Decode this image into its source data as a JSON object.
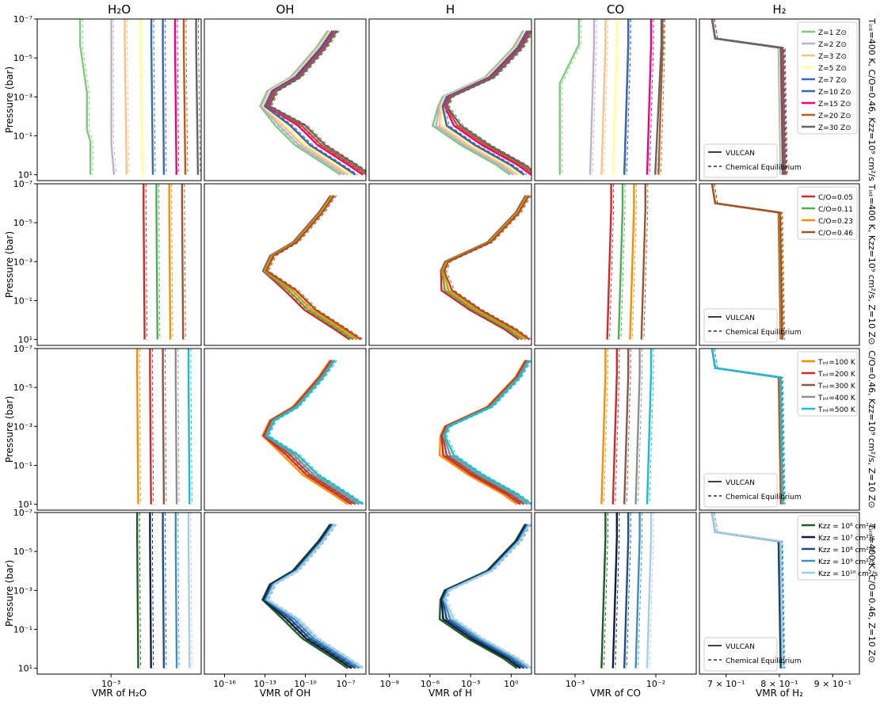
{
  "figure": {
    "column_titles": [
      "H₂O",
      "OH",
      "H",
      "CO",
      "H₂"
    ],
    "ylabel": "Pressure (bar)",
    "row_labels": [
      "Tᵢₙₜ=400 K, C/O=0.46, Kzz=10⁹ cm²/s",
      "Tᵢₙₜ=400 K, Kzz=10⁹ cm²/s, Z=10 Z⊙",
      "C/O=0.46, Kzz=10⁹ cm²/s, Z=10 Z⊙",
      "Tᵢₙₜ=400 K, C/O=0.46, Z=10 Z⊙"
    ],
    "y_tick_labels": [
      "10⁻⁷",
      "10⁻⁵",
      "10⁻³",
      "10⁻¹",
      "10¹"
    ],
    "x_axis": [
      {
        "xlabel": "VMR of H₂O",
        "ticks": [
          "10⁻³"
        ]
      },
      {
        "xlabel": "VMR of OH",
        "ticks": [
          "10⁻¹⁶",
          "10⁻¹³",
          "10⁻¹⁰",
          "10⁻⁷"
        ]
      },
      {
        "xlabel": "VMR of H",
        "ticks": [
          "10⁻⁹",
          "10⁻⁶",
          "10⁻³",
          "10⁰"
        ]
      },
      {
        "xlabel": "VMR of CO",
        "ticks": [
          "10⁻³",
          "10⁻²"
        ]
      },
      {
        "xlabel": "VMR of H₂",
        "ticks": [
          "7 × 10⁻¹",
          "8 × 10⁻¹",
          "9 × 10⁻¹"
        ]
      }
    ],
    "style_legend": {
      "solid": "VULCAN",
      "dashed": "Chemical Equilibrium"
    }
  },
  "chart_data": {
    "type": "line",
    "description_axes": {
      "y": "pressure (bar), log scale, inverted",
      "ylim": [
        10,
        1e-07
      ],
      "x": "volume mixing ratio, log scale"
    },
    "rows": [
      {
        "legend": {
          "location": "H₂ panel, upper right",
          "entries": [
            {
              "label": "Z=1 Z⊙",
              "color": "#7fc97f"
            },
            {
              "label": "Z=2 Z⊙",
              "color": "#beaed4"
            },
            {
              "label": "Z=3 Z⊙",
              "color": "#fdc086"
            },
            {
              "label": "Z=5 Z⊙",
              "color": "#ffff99"
            },
            {
              "label": "Z=7 Z⊙",
              "color": "#386cb0"
            },
            {
              "label": "Z=10 Z⊙",
              "color": "#3a66b3"
            },
            {
              "label": "Z=15 Z⊙",
              "color": "#f0027f"
            },
            {
              "label": "Z=20 Z⊙",
              "color": "#bf5b17"
            },
            {
              "label": "Z=30 Z⊙",
              "color": "#666666"
            }
          ]
        }
      },
      {
        "legend": {
          "location": "H₂ panel, upper right",
          "entries": [
            {
              "label": "C/O=0.05",
              "color": "#d62728"
            },
            {
              "label": "C/O=0.11",
              "color": "#4caf50"
            },
            {
              "label": "C/O=0.23",
              "color": "#ff8c00"
            },
            {
              "label": "C/O=0.46",
              "color": "#a0522d"
            }
          ]
        }
      },
      {
        "legend": {
          "location": "H₂ panel, upper right",
          "entries": [
            {
              "label": "Tᵢₙₜ=100 K",
              "color": "#ff8c00"
            },
            {
              "label": "Tᵢₙₜ=200 K",
              "color": "#d62728"
            },
            {
              "label": "Tᵢₙₜ=300 K",
              "color": "#8c564b"
            },
            {
              "label": "Tᵢₙₜ=400 K",
              "color": "#8f8f8f"
            },
            {
              "label": "Tᵢₙₜ=500 K",
              "color": "#17becf"
            }
          ]
        }
      },
      {
        "legend": {
          "location": "H₂ panel, upper right",
          "entries": [
            {
              "label": "Kzz = 10⁶ cm²/s",
              "color": "#1b5e20"
            },
            {
              "label": "Kzz = 10⁷ cm²/s",
              "color": "#0d1b4a"
            },
            {
              "label": "Kzz = 10⁸ cm²/s",
              "color": "#1f4e8c"
            },
            {
              "label": "Kzz = 10⁹ cm²/s",
              "color": "#3d8fc2"
            },
            {
              "label": "Kzz = 10¹⁰ cm²/s",
              "color": "#a6cee3"
            }
          ]
        }
      }
    ],
    "curves": {
      "H2O": {
        "Z=1 Z⊙": [
          [
            1e-07,
            0.0002
          ],
          [
            2e-06,
            0.0002
          ],
          [
            0.0006,
            0.00025
          ],
          [
            0.05,
            0.00025
          ],
          [
            0.2,
            0.00028
          ],
          [
            10,
            0.00028
          ]
        ],
        "Z=2 Z⊙": [
          [
            1e-07,
            0.00055
          ],
          [
            2e-06,
            0.00055
          ],
          [
            0.3,
            0.00055
          ],
          [
            10,
            0.0006
          ]
        ],
        "Z=3 Z⊙": [
          [
            1e-07,
            0.00085
          ],
          [
            2e-06,
            0.00085
          ],
          [
            10,
            0.0009
          ]
        ],
        "Z=5 Z⊙": [
          [
            1e-07,
            0.0014
          ],
          [
            2e-06,
            0.0014
          ],
          [
            10,
            0.0015
          ]
        ],
        "Z=7 Z⊙": [
          [
            1e-07,
            0.002
          ],
          [
            2e-06,
            0.002
          ],
          [
            10,
            0.0021
          ]
        ],
        "Z=10 Z⊙": [
          [
            1e-07,
            0.0029
          ],
          [
            2e-06,
            0.0029
          ],
          [
            10,
            0.003
          ]
        ],
        "Z=15 Z⊙": [
          [
            1e-07,
            0.0043
          ],
          [
            2e-06,
            0.0043
          ],
          [
            10,
            0.0045
          ]
        ],
        "Z=20 Z⊙": [
          [
            1e-07,
            0.0057
          ],
          [
            2e-06,
            0.0057
          ],
          [
            10,
            0.006
          ]
        ],
        "Z=30 Z⊙": [
          [
            1e-07,
            0.0085
          ],
          [
            2e-06,
            0.0085
          ],
          [
            10,
            0.009
          ]
        ]
      },
      "OH": {
        "Z=10 Z⊙": [
          [
            4e-07,
            3e-08
          ],
          [
            3e-06,
            5e-09
          ],
          [
            0.0001,
            1e-10
          ],
          [
            0.0005,
            3e-12
          ],
          [
            0.003,
            1e-12
          ],
          [
            0.03,
            5e-11
          ],
          [
            0.3,
            1e-09
          ],
          [
            3,
            1e-07
          ],
          [
            10,
            1e-06
          ]
        ]
      },
      "H": {
        "Z=10 Z⊙": [
          [
            4e-07,
            0.5
          ],
          [
            3e-06,
            0.1
          ],
          [
            0.0001,
            0.001
          ],
          [
            0.001,
            1e-06
          ],
          [
            0.003,
            5e-07
          ],
          [
            0.03,
            1e-06
          ],
          [
            0.3,
            0.0001
          ],
          [
            3,
            0.03
          ],
          [
            10,
            0.3
          ]
        ]
      },
      "CO": {
        "Z=1 Z⊙": [
          [
            1e-07,
            0.0005
          ],
          [
            2e-06,
            0.0005
          ],
          [
            0.0002,
            0.00025
          ],
          [
            10,
            0.00025
          ]
        ],
        "Z=10 Z⊙": [
          [
            1e-07,
            0.003
          ],
          [
            2e-06,
            0.003
          ],
          [
            10,
            0.0026
          ]
        ],
        "Z=30 Z⊙": [
          [
            1e-07,
            0.01
          ],
          [
            2e-06,
            0.01
          ],
          [
            10,
            0.008
          ]
        ]
      },
      "H2": {
        "all": [
          [
            1e-06,
            0.72
          ],
          [
            2e-06,
            0.835
          ],
          [
            10,
            0.84
          ]
        ]
      }
    }
  }
}
